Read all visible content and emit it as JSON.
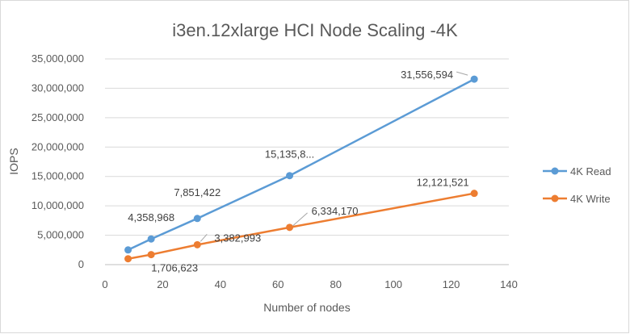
{
  "chart_data": {
    "type": "line",
    "title": "i3en.12xlarge HCI Node Scaling -4K",
    "xlabel": "Number of nodes",
    "ylabel": "IOPS",
    "xlim": [
      0,
      140
    ],
    "ylim": [
      0,
      35000000
    ],
    "x_ticks": [
      0,
      20,
      40,
      60,
      80,
      100,
      120,
      140
    ],
    "y_ticks": [
      0,
      5000000,
      10000000,
      15000000,
      20000000,
      25000000,
      30000000,
      35000000
    ],
    "x_tick_labels": [
      "0",
      "20",
      "40",
      "60",
      "80",
      "100",
      "120",
      "140"
    ],
    "y_tick_labels": [
      "0",
      "5,000,000",
      "10,000,000",
      "15,000,000",
      "20,000,000",
      "25,000,000",
      "30,000,000",
      "35,000,000"
    ],
    "grid": "horizontal",
    "legend": "right",
    "series": [
      {
        "name": "4K Read",
        "color": "#5b9bd5",
        "x": [
          8,
          16,
          32,
          64,
          128
        ],
        "values": [
          2500000,
          4358968,
          7851422,
          15135800,
          31556594
        ],
        "labels": [
          "",
          "4,358,968",
          "7,851,422",
          "15,135,8...",
          "31,556,594"
        ]
      },
      {
        "name": "4K Write",
        "color": "#ed7d31",
        "x": [
          8,
          16,
          32,
          64,
          128
        ],
        "values": [
          1000000,
          1706623,
          3382993,
          6334170,
          12121521
        ],
        "labels": [
          "",
          "1,706,623",
          "3,382,993",
          "6,334,170",
          "12,121,521"
        ]
      }
    ]
  }
}
